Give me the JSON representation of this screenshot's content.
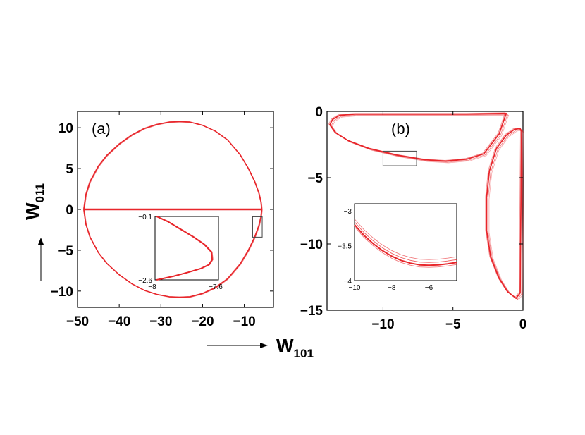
{
  "colors": {
    "curve": "#e8262b",
    "frame": "#000000",
    "zoombox": "#444444"
  },
  "figure": {
    "xlabel": {
      "main": "W",
      "sub": "101"
    },
    "ylabel": {
      "main": "W",
      "sub": "011"
    }
  },
  "chart_data": [
    {
      "type": "line",
      "panel_label": "(a)",
      "xlim": [
        -50,
        -3
      ],
      "ylim": [
        -12,
        12
      ],
      "x_ticks": [
        "−50",
        "−40",
        "−30",
        "−20",
        "−10"
      ],
      "x_tick_values": [
        -50,
        -40,
        -30,
        -20,
        -10
      ],
      "y_ticks": [
        "10",
        "5",
        "0",
        "−5",
        "−10"
      ],
      "y_tick_values": [
        10,
        5,
        0,
        -5,
        -10
      ],
      "upper_lobe": {
        "x": [
          -48.5,
          -48,
          -47,
          -45,
          -43,
          -40,
          -37,
          -34,
          -31,
          -28,
          -25.5,
          -23,
          -20,
          -17,
          -14,
          -11,
          -9,
          -7.5,
          -6.5,
          -6,
          -5.8
        ],
        "y": [
          0,
          1.8,
          3.4,
          5.3,
          6.6,
          8.0,
          9.1,
          9.9,
          10.4,
          10.7,
          10.75,
          10.7,
          10.3,
          9.6,
          8.5,
          6.7,
          5.0,
          3.4,
          2.0,
          0.9,
          0
        ]
      },
      "lower_lobe": {
        "x": [
          -48.5,
          -48,
          -47,
          -45,
          -43,
          -40,
          -37,
          -34,
          -31,
          -28,
          -25.5,
          -23,
          -20,
          -17,
          -14,
          -11,
          -9,
          -7.5,
          -6.5,
          -6,
          -5.8
        ],
        "y": [
          0,
          -1.8,
          -3.4,
          -5.3,
          -6.6,
          -8.0,
          -9.1,
          -9.9,
          -10.4,
          -10.7,
          -10.75,
          -10.7,
          -10.3,
          -9.6,
          -8.5,
          -6.7,
          -5.0,
          -3.4,
          -2.0,
          -0.9,
          0
        ]
      },
      "zoom_box": {
        "x": [
          -8,
          -5.7
        ],
        "y": [
          -3.4,
          -0.9
        ]
      },
      "inset": {
        "xlim": [
          -8,
          -7.6
        ],
        "ylim": [
          -2.6,
          -0.1
        ],
        "x_ticks": [
          "−8",
          "−7.6"
        ],
        "y_ticks": [
          "−0.1",
          "−2.6"
        ],
        "curve": {
          "x": [
            -7.99,
            -7.92,
            -7.84,
            -7.76,
            -7.69,
            -7.645,
            -7.64,
            -7.66,
            -7.71,
            -7.79,
            -7.88,
            -7.99
          ],
          "y": [
            -0.1,
            -0.3,
            -0.6,
            -0.9,
            -1.2,
            -1.5,
            -1.8,
            -2.0,
            -2.15,
            -2.3,
            -2.45,
            -2.6
          ]
        }
      }
    },
    {
      "type": "line",
      "panel_label": "(b)",
      "xlim": [
        -14,
        0
      ],
      "ylim": [
        -15,
        0
      ],
      "x_ticks": [
        "−10",
        "−5",
        "0"
      ],
      "x_tick_values": [
        -10,
        -5,
        0
      ],
      "y_ticks": [
        "0",
        "−5",
        "−10",
        "−15"
      ],
      "y_tick_values": [
        0,
        -5,
        -10,
        -15
      ],
      "top_loop": {
        "x": [
          -1.2,
          -4,
          -7,
          -10,
          -12,
          -13.1,
          -13.6,
          -13.8,
          -13.4,
          -12.5,
          -11,
          -9,
          -7,
          -5.5,
          -4,
          -2.8,
          -1.7,
          -1.2
        ],
        "y": [
          -0.15,
          -0.2,
          -0.2,
          -0.2,
          -0.2,
          -0.3,
          -0.6,
          -1.0,
          -1.6,
          -2.2,
          -2.8,
          -3.3,
          -3.65,
          -3.75,
          -3.6,
          -3.2,
          -1.7,
          -0.15
        ]
      },
      "right_loop": {
        "x": [
          -0.1,
          -0.2,
          -0.6,
          -1.2,
          -1.9,
          -2.4,
          -2.6,
          -2.6,
          -2.3,
          -1.7,
          -1.1,
          -0.5,
          -0.2,
          -0.1
        ],
        "y": [
          -1.5,
          -1.3,
          -1.35,
          -1.8,
          -2.8,
          -4.5,
          -6.5,
          -9,
          -11,
          -12.6,
          -13.6,
          -14.1,
          -13.7,
          -1.5
        ]
      },
      "zoom_box": {
        "x": [
          -10,
          -7.6
        ],
        "y": [
          -4.1,
          -3.0
        ]
      },
      "inset": {
        "xlim": [
          -10,
          -4.5
        ],
        "ylim": [
          -4,
          -2.9
        ],
        "x_ticks": [
          "−10",
          "−8",
          "−6"
        ],
        "x_tick_values": [
          -10,
          -8,
          -6
        ],
        "y_ticks": [
          "−3",
          "−3.5",
          "−4"
        ],
        "y_tick_values": [
          -3,
          -3.5,
          -4
        ],
        "curve": {
          "x": [
            -10,
            -9.5,
            -9,
            -8.5,
            -8,
            -7.5,
            -7,
            -6.5,
            -6,
            -5.5,
            -5,
            -4.5
          ],
          "y": [
            -3.2,
            -3.35,
            -3.47,
            -3.57,
            -3.65,
            -3.71,
            -3.75,
            -3.775,
            -3.78,
            -3.775,
            -3.76,
            -3.74
          ]
        }
      }
    }
  ]
}
